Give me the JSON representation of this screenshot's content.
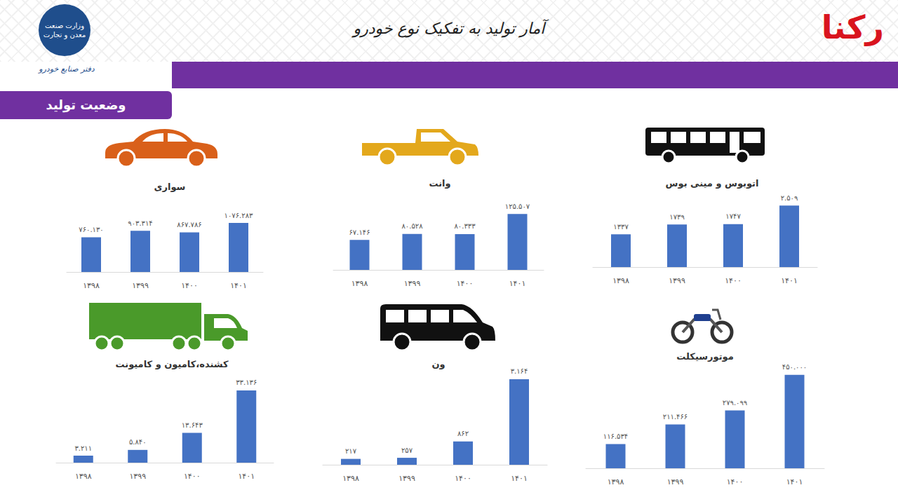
{
  "header": {
    "title": "آمار تولید به تفکیک نوع خودرو",
    "badge": "وضعیت تولید",
    "ministry": "وزارت صنعت معدن و تجارت",
    "office": "دفتر صنایع خودرو",
    "brand": "رکنا"
  },
  "chart_data": [
    {
      "type": "bar",
      "title": "سواری",
      "categories": [
        "۱۳۹۸",
        "۱۳۹۹",
        "۱۴۰۰",
        "۱۴۰۱"
      ],
      "values": [
        760130,
        903314,
        867786,
        1076283
      ],
      "value_labels": [
        "۷۶۰.۱۳۰",
        "۹۰۳.۳۱۴",
        "۸۶۷.۷۸۶",
        "۱۰۷۶.۲۸۳"
      ],
      "color": "#4472c4",
      "ylim": [
        0,
        1200000
      ],
      "tick_labels": "x",
      "data_labels": true,
      "grid": false
    },
    {
      "type": "bar",
      "title": "وانت",
      "categories": [
        "۱۳۹۸",
        "۱۳۹۹",
        "۱۴۰۰",
        "۱۴۰۱"
      ],
      "values": [
        67146,
        80528,
        80333,
        125507
      ],
      "value_labels": [
        "۶۷.۱۴۶",
        "۸۰.۵۲۸",
        "۸۰.۳۳۳",
        "۱۲۵.۵۰۷"
      ],
      "color": "#4472c4",
      "ylim": [
        0,
        140000
      ],
      "tick_labels": "x",
      "data_labels": true,
      "grid": false
    },
    {
      "type": "bar",
      "title": "اتوبوس و مینی بوس",
      "categories": [
        "۱۳۹۸",
        "۱۳۹۹",
        "۱۴۰۰",
        "۱۴۰۱"
      ],
      "values": [
        1337,
        1739,
        1747,
        2509
      ],
      "value_labels": [
        "۱۳۳۷",
        "۱۷۳۹",
        "۱۷۴۷",
        "۲.۵۰۹"
      ],
      "color": "#4472c4",
      "ylim": [
        0,
        2800
      ],
      "tick_labels": "x",
      "data_labels": true,
      "grid": false
    },
    {
      "type": "bar",
      "title": "کشنده،کامیون و کامیونت",
      "categories": [
        "۱۳۹۸",
        "۱۳۹۹",
        "۱۴۰۰",
        "۱۴۰۱"
      ],
      "values": [
        3211,
        5840,
        13643,
        33136
      ],
      "value_labels": [
        "۳.۲۱۱",
        "۵.۸۴۰",
        "۱۳.۶۴۳",
        "۳۳.۱۳۶"
      ],
      "color": "#4472c4",
      "ylim": [
        0,
        36000
      ],
      "tick_labels": "x",
      "data_labels": true,
      "grid": false
    },
    {
      "type": "bar",
      "title": "ون",
      "categories": [
        "۱۳۹۸",
        "۱۳۹۹",
        "۱۴۰۰",
        "۱۴۰۱"
      ],
      "values": [
        217,
        257,
        862,
        3164
      ],
      "value_labels": [
        "۲۱۷",
        "۲۵۷",
        "۸۶۲",
        "۳.۱۶۴"
      ],
      "color": "#4472c4",
      "ylim": [
        0,
        3500
      ],
      "tick_labels": "x",
      "data_labels": true,
      "grid": false
    },
    {
      "type": "bar",
      "title": "موتورسیکلت",
      "categories": [
        "۱۳۹۸",
        "۱۳۹۹",
        "۱۴۰۰",
        "۱۴۰۱"
      ],
      "values": [
        116534,
        211466,
        279099,
        450000
      ],
      "value_labels": [
        "۱۱۶.۵۳۴",
        "۲۱۱.۴۶۶",
        "۲۷۹.۰۹۹",
        "۴۵۰.۰۰۰"
      ],
      "color": "#4472c4",
      "ylim": [
        0,
        500000
      ],
      "tick_labels": "x",
      "data_labels": true,
      "grid": false
    }
  ]
}
